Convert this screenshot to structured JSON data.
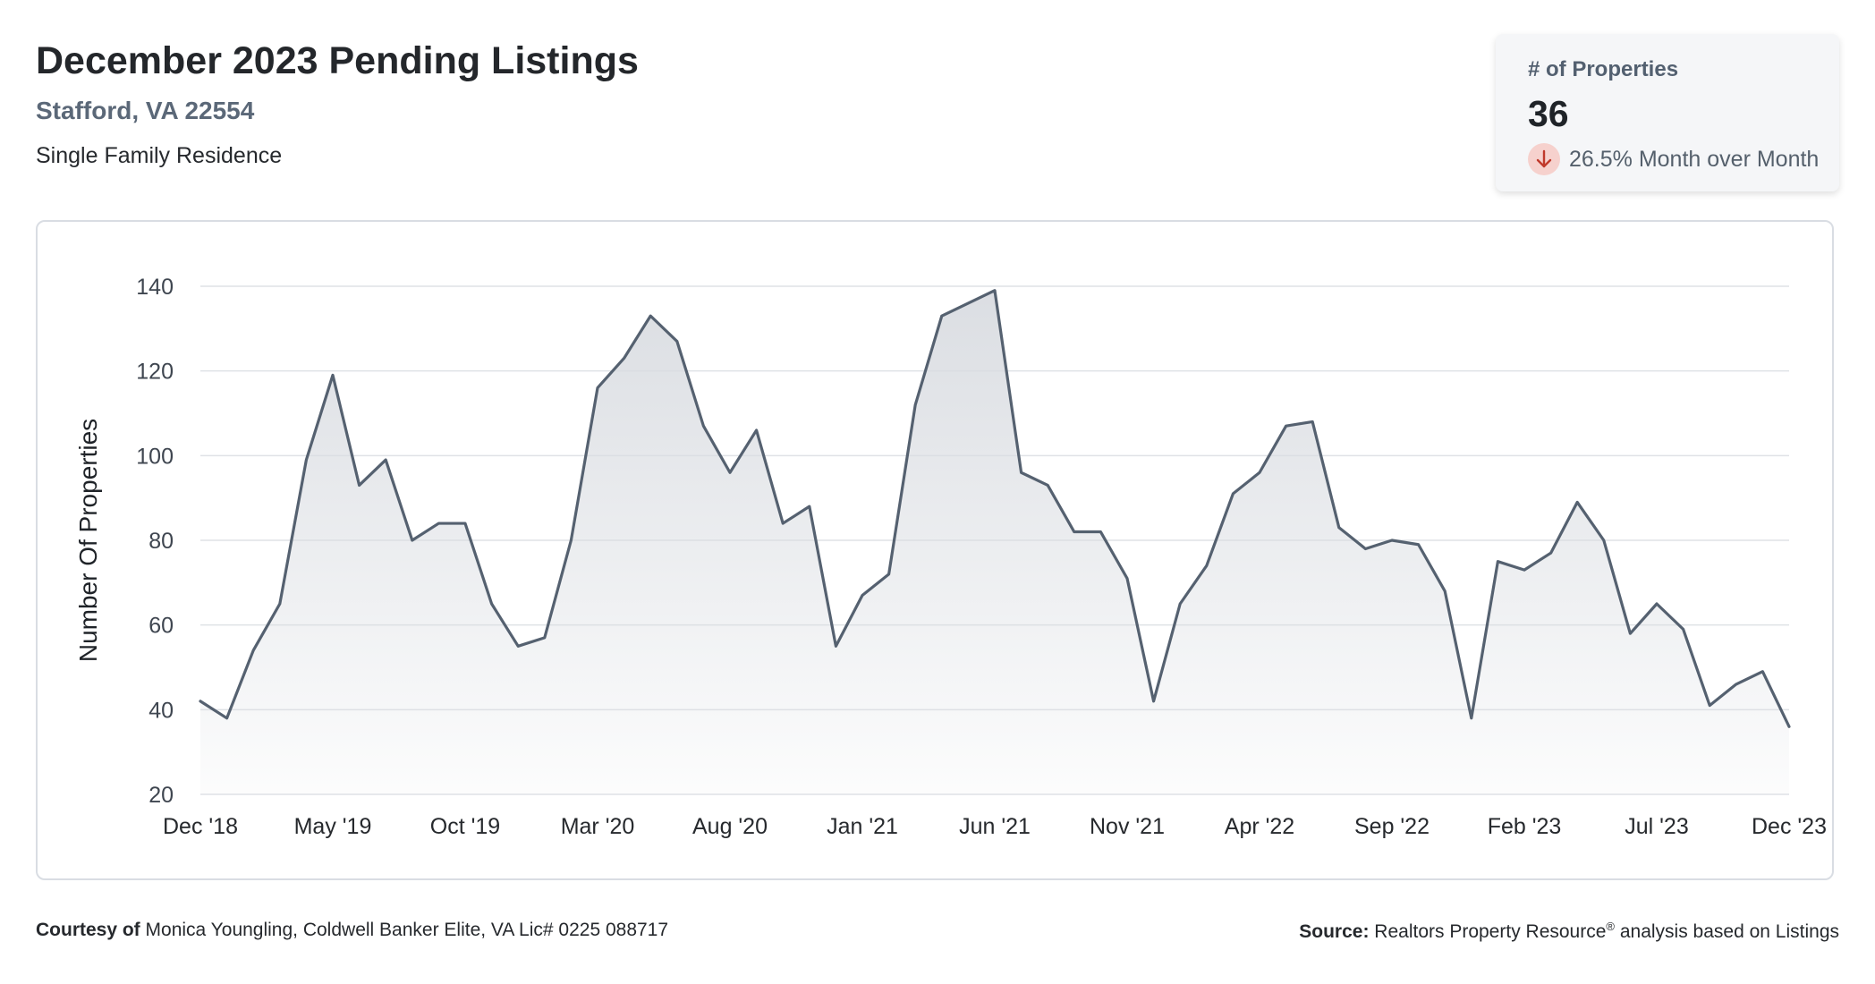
{
  "header": {
    "title": "December 2023 Pending Listings",
    "location": "Stafford, VA 22554",
    "property_type": "Single Family Residence"
  },
  "kpi": {
    "label": "# of Properties",
    "value": "36",
    "change_text": "26.5% Month over Month",
    "direction": "down",
    "icon": "arrow-down-icon",
    "icon_bg": "#f6d1cd",
    "icon_color": "#c0392b"
  },
  "chart_data": {
    "type": "area",
    "title": "December 2023 Pending Listings",
    "xlabel": "",
    "ylabel": "Number Of Properties",
    "ylim": [
      20,
      140
    ],
    "yticks": [
      20,
      40,
      60,
      80,
      100,
      120,
      140
    ],
    "xticks": [
      "Dec '18",
      "May '19",
      "Oct '19",
      "Mar '20",
      "Aug '20",
      "Jan '21",
      "Jun '21",
      "Nov '21",
      "Apr '22",
      "Sep '22",
      "Feb '23",
      "Jul '23",
      "Dec '23"
    ],
    "grid": true,
    "line_color": "#556170",
    "fill_color": "#d9dce1",
    "x": [
      "Dec '18",
      "Jan '19",
      "Feb '19",
      "Mar '19",
      "Apr '19",
      "May '19",
      "Jun '19",
      "Jul '19",
      "Aug '19",
      "Sep '19",
      "Oct '19",
      "Nov '19",
      "Dec '19",
      "Jan '20",
      "Feb '20",
      "Mar '20",
      "Apr '20",
      "May '20",
      "Jun '20",
      "Jul '20",
      "Aug '20",
      "Sep '20",
      "Oct '20",
      "Nov '20",
      "Dec '20",
      "Jan '21",
      "Feb '21",
      "Mar '21",
      "Apr '21",
      "May '21",
      "Jun '21",
      "Jul '21",
      "Aug '21",
      "Sep '21",
      "Oct '21",
      "Nov '21",
      "Dec '21",
      "Jan '22",
      "Feb '22",
      "Mar '22",
      "Apr '22",
      "May '22",
      "Jun '22",
      "Jul '22",
      "Aug '22",
      "Sep '22",
      "Oct '22",
      "Nov '22",
      "Dec '22",
      "Jan '23",
      "Feb '23",
      "Mar '23",
      "Apr '23",
      "May '23",
      "Jun '23",
      "Jul '23",
      "Aug '23",
      "Sep '23",
      "Oct '23",
      "Nov '23",
      "Dec '23"
    ],
    "values": [
      42,
      38,
      54,
      65,
      99,
      119,
      93,
      99,
      80,
      84,
      84,
      65,
      55,
      57,
      80,
      116,
      123,
      133,
      127,
      107,
      96,
      106,
      84,
      88,
      55,
      67,
      72,
      112,
      133,
      136,
      139,
      96,
      93,
      82,
      82,
      71,
      42,
      65,
      74,
      91,
      96,
      107,
      108,
      83,
      78,
      80,
      79,
      68,
      38,
      75,
      73,
      77,
      89,
      80,
      58,
      65,
      59,
      41,
      46,
      49,
      36
    ]
  },
  "footer": {
    "courtesy_label": "Courtesy of",
    "courtesy_text": "Monica Youngling, Coldwell Banker Elite, VA Lic# 0225 088717",
    "source_label": "Source:",
    "source_text": "Realtors Property Resource",
    "source_mark": "®",
    "source_suffix": "analysis based on Listings"
  }
}
